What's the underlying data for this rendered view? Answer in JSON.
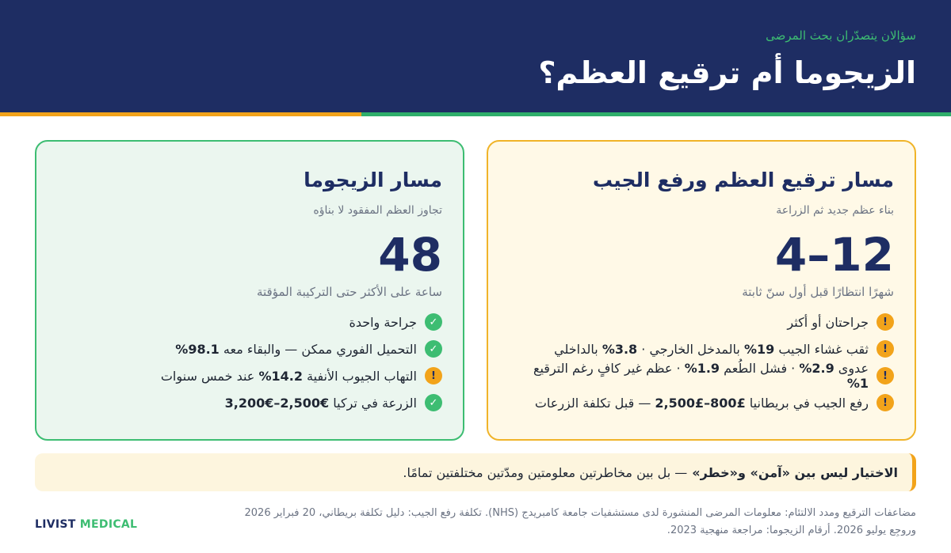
{
  "header": {
    "eyebrow": "سؤالان يتصدّران بحث المرضى",
    "title": "الزيجوما أم ترقيع العظم؟"
  },
  "bone_card": {
    "title": "مسار ترقيع العظم ورفع الجيب",
    "subtitle": "بناء عظم جديد ثم الزراعة",
    "big_number": "4–12",
    "caption": "شهرًا انتظارًا قبل أول سنّ ثابتة",
    "items": [
      {
        "icon": "!",
        "parts": [
          "جراحتان أو أكثر"
        ]
      },
      {
        "icon": "!",
        "parts": [
          "ثقب غشاء الجيب ",
          "19%",
          " بالمدخل الخارجي · ",
          "3.8%",
          " بالداخلي"
        ]
      },
      {
        "icon": "!",
        "parts": [
          "عدوى ",
          "2.9%",
          " · فشل الطُعم ",
          "1.9%",
          " · عظم غير كافٍ رغم الترقيع ",
          "1%"
        ]
      },
      {
        "icon": "!",
        "parts": [
          "رفع الجيب في بريطانيا ",
          "£800–£2,500",
          " — قبل تكلفة الزرعات"
        ]
      }
    ]
  },
  "zyg_card": {
    "title": "مسار الزيجوما",
    "subtitle": "تجاوز العظم المفقود لا بناؤه",
    "big_number": "48",
    "caption": "ساعة على الأكثر حتى التركيبة المؤقتة",
    "items": [
      {
        "icon": "✓",
        "parts": [
          "جراحة واحدة"
        ]
      },
      {
        "icon": "✓",
        "parts": [
          "التحميل الفوري ممكن — والبقاء معه ",
          "98.1%"
        ]
      },
      {
        "icon": "!",
        "parts": [
          "التهاب الجيوب الأنفية ",
          "14.2%",
          " عند خمس سنوات"
        ]
      },
      {
        "icon": "✓",
        "parts": [
          "الزرعة في تركيا ",
          "€2,500–€3,200"
        ]
      }
    ]
  },
  "banner": {
    "bold": "الاختيار ليس بين «آمن» و«خطر»",
    "rest": "— بل بين مخاطرتين معلومتين ومدّتين مختلفتين تمامًا."
  },
  "footnote": {
    "line1": "مضاعفات الترقيع ومدد الالتئام: معلومات المرضى المنشورة لدى مستشفيات جامعة كامبريدج (NHS). تكلفة رفع الجيب: دليل تكلفة بريطاني، 20 فبراير 2026",
    "line2": "وروجِع يوليو 2026. أرقام الزيجوما: مراجعة منهجية 2023."
  },
  "brand": {
    "part1": "LIVIST",
    "part2": "MEDICAL"
  },
  "colors": {
    "navy": "#1e2d63",
    "green": "#3dbd72",
    "orange": "#f2a31a"
  }
}
